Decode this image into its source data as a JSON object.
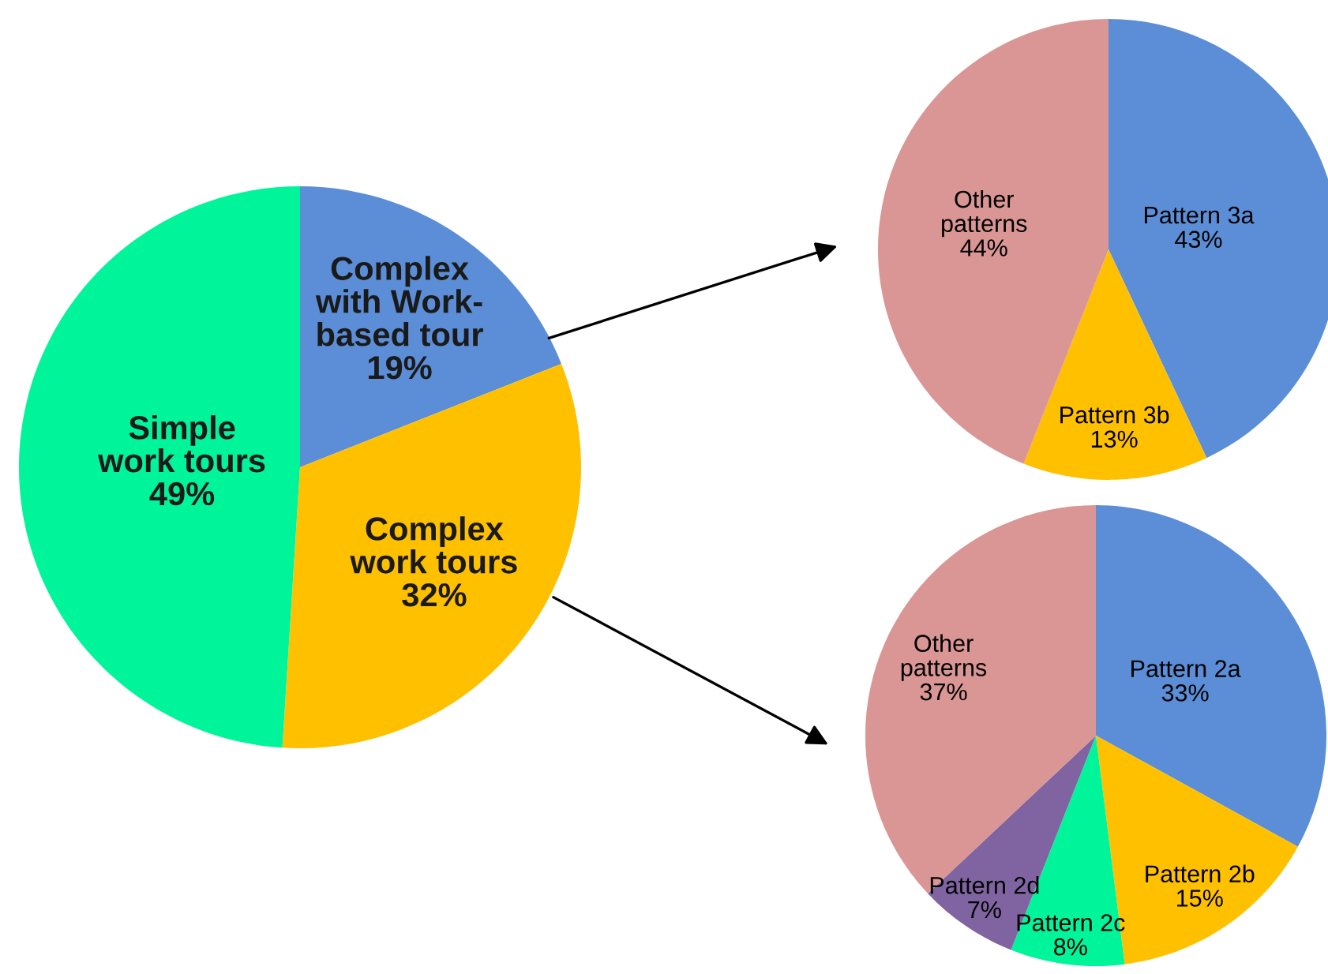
{
  "chart_data": [
    {
      "type": "pie",
      "categories": [
        "Complex\nwith Work-\nbased tour",
        "Complex\nwork tours",
        "Simple\nwork tours"
      ],
      "values": [
        19,
        32,
        49
      ],
      "value_labels": [
        "19%",
        "32%",
        "49%"
      ],
      "colors": [
        "#5b8ed6",
        "#ffc000",
        "#00f59b"
      ]
    },
    {
      "type": "pie",
      "categories": [
        "Pattern 3a",
        "Pattern 3b",
        "Other\npatterns"
      ],
      "values": [
        43,
        13,
        44
      ],
      "value_labels": [
        "43%",
        "13%",
        "44%"
      ],
      "colors": [
        "#5b8ed6",
        "#ffc000",
        "#d99694"
      ]
    },
    {
      "type": "pie",
      "categories": [
        "Pattern 2a",
        "Pattern 2b",
        "Pattern 2c",
        "Pattern 2d",
        "Other\npatterns"
      ],
      "values": [
        33,
        15,
        8,
        7,
        37
      ],
      "value_labels": [
        "33%",
        "15%",
        "8%",
        "7%",
        "37%"
      ],
      "colors": [
        "#5b8ed6",
        "#ffc000",
        "#00f59b",
        "#8064a2",
        "#d99694"
      ]
    }
  ]
}
